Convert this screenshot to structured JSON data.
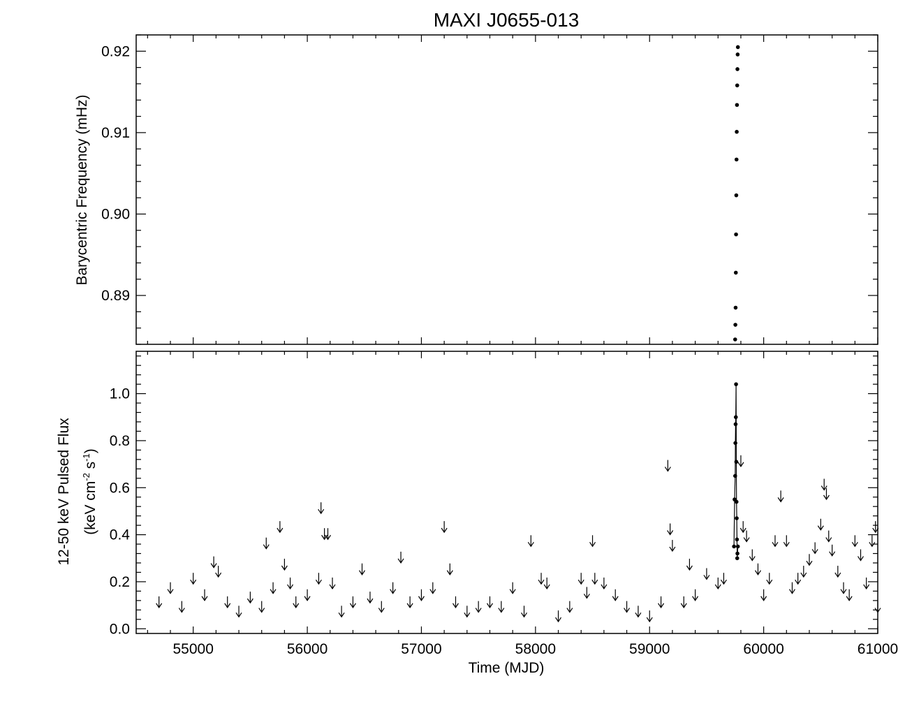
{
  "chart_data": [
    {
      "type": "scatter",
      "title": "MAXI J0655-013",
      "xlabel": "",
      "ylabel": "Barycentric Frequency (mHz)",
      "xlim": [
        54500,
        61000
      ],
      "ylim": [
        0.884,
        0.922
      ],
      "x_ticks": [
        55000,
        56000,
        57000,
        58000,
        59000,
        60000,
        61000
      ],
      "y_ticks": [
        "0.89",
        "0.90",
        "0.91",
        "0.92"
      ],
      "y_tick_values": [
        0.89,
        0.9,
        0.91,
        0.92
      ],
      "x_tick_labels_shown": false,
      "grid": false,
      "series": [
        {
          "x": [
            59750,
            59752,
            59754,
            59756,
            59758,
            59760,
            59762,
            59764,
            59766,
            59768,
            59770,
            59772,
            59774
          ],
          "y": [
            0.8846,
            0.8864,
            0.8885,
            0.8928,
            0.8975,
            0.9023,
            0.9067,
            0.9101,
            0.9134,
            0.9158,
            0.9178,
            0.9196,
            0.9205
          ]
        }
      ]
    },
    {
      "type": "scatter",
      "xlabel": "Time (MJD)",
      "ylabel_line1": "12-50 keV Pulsed Flux",
      "ylabel_line2": "(keV cm",
      "ylabel_sup1": "-2",
      "ylabel_mid": " s",
      "ylabel_sup2": "-1",
      "ylabel_end": ")",
      "xlim": [
        54500,
        61000
      ],
      "ylim": [
        -0.02,
        1.18
      ],
      "x_ticks": [
        "55000",
        "56000",
        "57000",
        "58000",
        "59000",
        "60000",
        "61000"
      ],
      "x_tick_values": [
        55000,
        56000,
        57000,
        58000,
        59000,
        60000,
        61000
      ],
      "y_ticks": [
        "0.0",
        "0.2",
        "0.4",
        "0.6",
        "0.8",
        "1.0"
      ],
      "y_tick_values": [
        0.0,
        0.2,
        0.4,
        0.6,
        0.8,
        1.0
      ],
      "grid": false,
      "series": [
        {
          "name": "",
          "kind": "detections",
          "x": [
            59740,
            59745,
            59750,
            59752,
            59754,
            59756,
            59758,
            59760,
            59762,
            59764,
            59766,
            59768,
            59770,
            59774
          ],
          "y": [
            0.35,
            0.55,
            0.65,
            0.79,
            0.87,
            0.9,
            1.04,
            0.71,
            0.54,
            0.47,
            0.38,
            0.3,
            0.32,
            0.35
          ]
        },
        {
          "name": "",
          "kind": "upper limits",
          "x": [
            54700,
            54800,
            54900,
            55000,
            55100,
            55180,
            55220,
            55300,
            55400,
            55500,
            55600,
            55640,
            55700,
            55760,
            55800,
            55850,
            55900,
            56000,
            56100,
            56120,
            56150,
            56180,
            56220,
            56300,
            56400,
            56480,
            56550,
            56650,
            56750,
            56820,
            56900,
            57000,
            57100,
            57200,
            57250,
            57300,
            57400,
            57500,
            57600,
            57700,
            57800,
            57900,
            57960,
            58050,
            58100,
            58200,
            58300,
            58400,
            58450,
            58500,
            58520,
            58600,
            58700,
            58800,
            58900,
            59000,
            59100,
            59160,
            59180,
            59200,
            59300,
            59350,
            59400,
            59500,
            59600,
            59650,
            59800,
            59820,
            59850,
            59900,
            59950,
            60000,
            60050,
            60100,
            60150,
            60200,
            60250,
            60300,
            60350,
            60400,
            60450,
            60500,
            60530,
            60550,
            60570,
            60600,
            60650,
            60700,
            60750,
            60800,
            60850,
            60900,
            60950,
            60980,
            61000
          ],
          "y": [
            0.12,
            0.18,
            0.1,
            0.22,
            0.15,
            0.29,
            0.25,
            0.12,
            0.08,
            0.14,
            0.1,
            0.37,
            0.18,
            0.44,
            0.28,
            0.2,
            0.12,
            0.15,
            0.22,
            0.52,
            0.41,
            0.41,
            0.2,
            0.08,
            0.12,
            0.26,
            0.14,
            0.1,
            0.18,
            0.31,
            0.12,
            0.15,
            0.18,
            0.44,
            0.26,
            0.12,
            0.08,
            0.1,
            0.12,
            0.1,
            0.18,
            0.08,
            0.38,
            0.22,
            0.2,
            0.06,
            0.1,
            0.22,
            0.16,
            0.38,
            0.22,
            0.2,
            0.15,
            0.1,
            0.08,
            0.06,
            0.12,
            0.7,
            0.43,
            0.36,
            0.12,
            0.28,
            0.15,
            0.24,
            0.2,
            0.22,
            0.72,
            0.44,
            0.4,
            0.32,
            0.26,
            0.15,
            0.22,
            0.38,
            0.57,
            0.38,
            0.18,
            0.22,
            0.25,
            0.3,
            0.35,
            0.45,
            0.62,
            0.58,
            0.4,
            0.34,
            0.25,
            0.18,
            0.15,
            0.38,
            0.32,
            0.2,
            0.38,
            0.44,
            0.1
          ]
        }
      ]
    }
  ]
}
